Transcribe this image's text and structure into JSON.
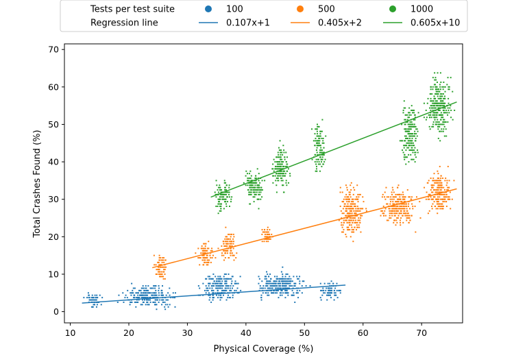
{
  "chart_data": {
    "type": "scatter",
    "xlabel": "Physical Coverage  (%)",
    "ylabel": "Total Crashes Found (%)",
    "xlim": [
      9,
      77
    ],
    "ylim": [
      -3,
      71.5
    ],
    "xticks": [
      10,
      20,
      30,
      40,
      50,
      60,
      70
    ],
    "yticks": [
      0,
      10,
      20,
      30,
      40,
      50,
      60,
      70
    ],
    "grid": false,
    "legend": {
      "placement": "top-center",
      "row_titles": [
        "Tests per test suite",
        "Regression line"
      ]
    },
    "series": [
      {
        "name": "100",
        "color": "#1f77b4",
        "regression": {
          "label": "0.107x+1",
          "slope": 0.107,
          "intercept": 1,
          "x_range": [
            12,
            57
          ]
        },
        "clusters": [
          {
            "x": [
              12,
              16
            ],
            "y": [
              0,
              6
            ]
          },
          {
            "x": [
              17,
              30
            ],
            "y": [
              0,
              8
            ]
          },
          {
            "x": [
              31,
              40
            ],
            "y": [
              1,
              12
            ]
          },
          {
            "x": [
              40,
              52
            ],
            "y": [
              2,
              12
            ]
          },
          {
            "x": [
              52,
              57
            ],
            "y": [
              2,
              9
            ]
          }
        ]
      },
      {
        "name": "500",
        "color": "#ff7f0e",
        "regression": {
          "label": "0.405x+2",
          "slope": 0.405,
          "intercept": 2,
          "x_range": [
            24,
            76
          ]
        },
        "clusters": [
          {
            "x": [
              24,
              27
            ],
            "y": [
              7,
              17
            ]
          },
          {
            "x": [
              31,
              35
            ],
            "y": [
              10,
              20
            ]
          },
          {
            "x": [
              35,
              39
            ],
            "y": [
              12,
              23
            ]
          },
          {
            "x": [
              42,
              45
            ],
            "y": [
              17,
              24
            ]
          },
          {
            "x": [
              55,
              61
            ],
            "y": [
              17,
              37
            ]
          },
          {
            "x": [
              62,
              70
            ],
            "y": [
              21,
              35
            ]
          },
          {
            "x": [
              70,
              76
            ],
            "y": [
              24,
              40
            ]
          }
        ]
      },
      {
        "name": "1000",
        "color": "#2ca02c",
        "regression": {
          "label": "0.605x+10",
          "slope": 0.605,
          "intercept": 10,
          "x_range": [
            34,
            76
          ]
        },
        "clusters": [
          {
            "x": [
              34,
              38
            ],
            "y": [
              25,
              37
            ]
          },
          {
            "x": [
              39,
              44
            ],
            "y": [
              27,
              40
            ]
          },
          {
            "x": [
              44,
              48
            ],
            "y": [
              30,
              47
            ]
          },
          {
            "x": [
              51,
              54
            ],
            "y": [
              35,
              53
            ]
          },
          {
            "x": [
              66,
              70
            ],
            "y": [
              36,
              59
            ]
          },
          {
            "x": [
              70,
              76
            ],
            "y": [
              44,
              66
            ]
          }
        ]
      }
    ]
  }
}
